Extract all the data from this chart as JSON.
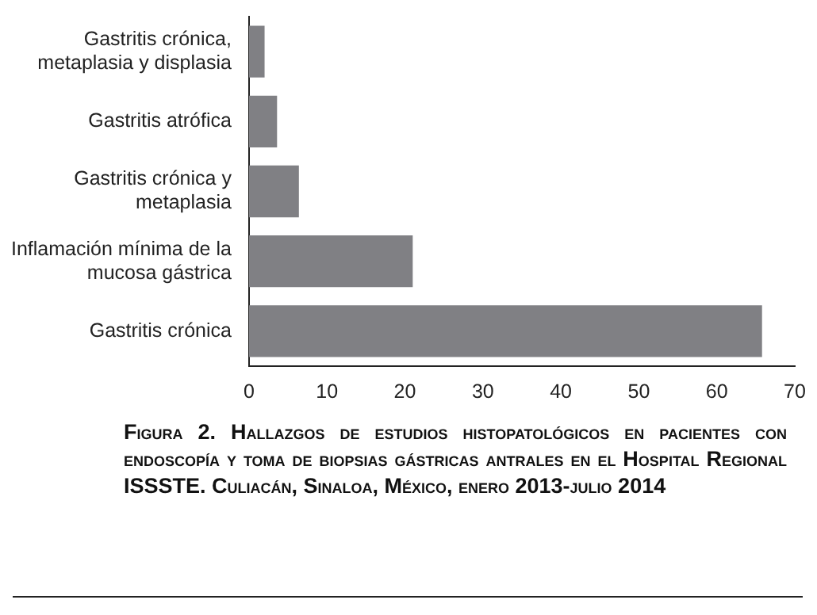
{
  "chart_data": {
    "type": "bar",
    "orientation": "horizontal",
    "title": "Figura 2. Hallazgos de estudios histopatológicos en pacientes con endoscopía y toma de biopsias gástricas antrales en el Hospital Regional ISSSTE. Culiacán, Sinaloa, México, enero 2013-julio 2014",
    "categories": [
      "Gastritis crónica, metaplasia y displasia",
      "Gastritis atrófica",
      "Gastritis crónica y metaplasia",
      "Inflamación mínima de la mucosa gástrica",
      "Gastritis crónica"
    ],
    "values": [
      2.0,
      3.6,
      6.4,
      21.0,
      65.8
    ],
    "color": "#808084",
    "xlim": [
      0,
      70
    ],
    "xticks": [
      0,
      10,
      20,
      30,
      40,
      50,
      60,
      70
    ],
    "grid": false
  }
}
